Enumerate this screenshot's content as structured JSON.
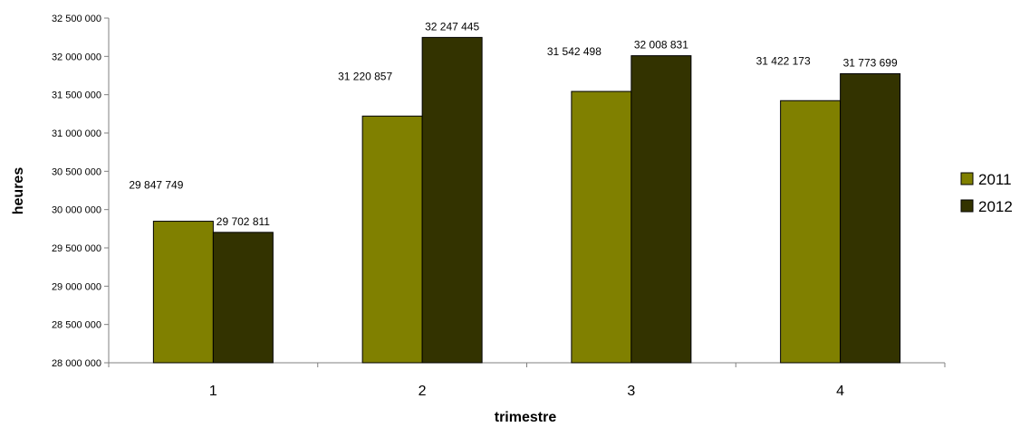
{
  "chart_data": {
    "type": "bar",
    "title": "",
    "xlabel": "trimestre",
    "ylabel": "heures",
    "categories": [
      "1",
      "2",
      "3",
      "4"
    ],
    "series": [
      {
        "name": "2011",
        "color": "#808000",
        "values": [
          29847749,
          31220857,
          31542498,
          31422173
        ],
        "labels": [
          "29 847 749",
          "31 220 857",
          "31 542 498",
          "31 422 173"
        ]
      },
      {
        "name": "2012",
        "color": "#333300",
        "values": [
          29702811,
          32247445,
          32008831,
          31773699
        ],
        "labels": [
          "29 702 811",
          "32 247 445",
          "32 008 831",
          "31 773 699"
        ]
      }
    ],
    "ylim": [
      28000000,
      32500000
    ],
    "yticks": [
      28000000,
      28500000,
      29000000,
      29500000,
      30000000,
      30500000,
      31000000,
      31500000,
      32000000,
      32500000
    ],
    "ytick_labels": [
      "28 000 000",
      "28 500 000",
      "29 000 000",
      "29 500 000",
      "30 000 000",
      "30 500 000",
      "31 000 000",
      "31 500 000",
      "32 000 000",
      "32 500 000"
    ],
    "grid": false,
    "legend_position": "right"
  }
}
